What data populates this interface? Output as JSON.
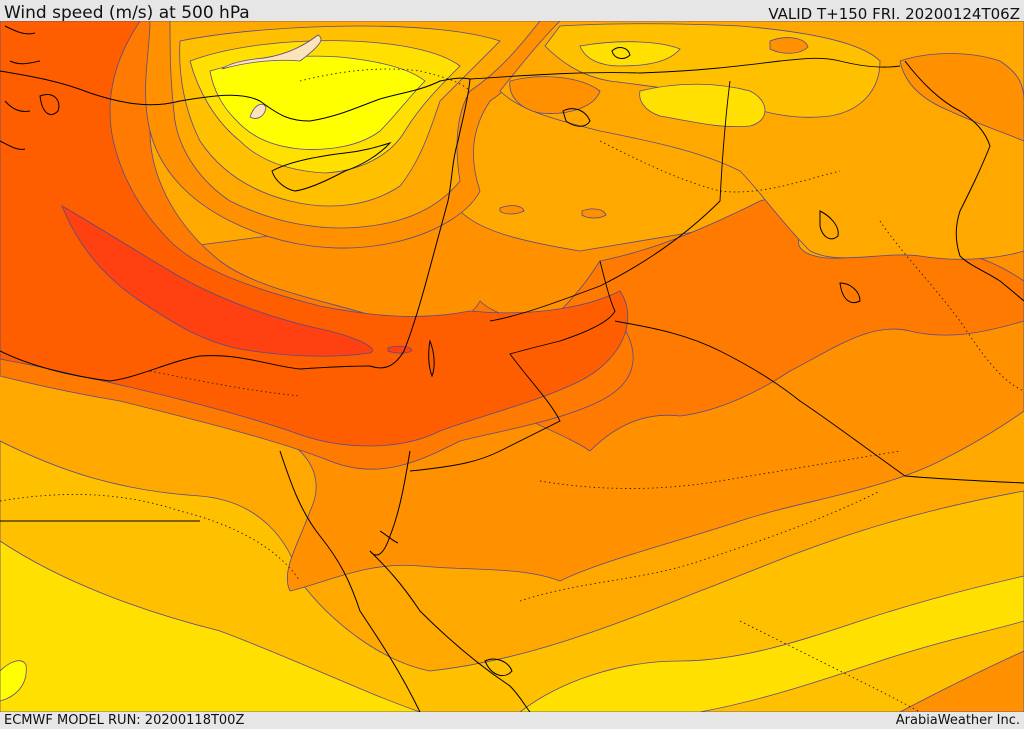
{
  "header": {
    "title": "Wind speed (m/s) at 500 hPa",
    "valid_time": "VALID T+150 FRI. 20200124T06Z"
  },
  "footer": {
    "model_run": "ECMWF MODEL RUN: 20200118T00Z",
    "credit": "ArabiaWeather Inc."
  },
  "palette": {
    "very_light": "#fbe3bb",
    "light_yellow": "#ffff00",
    "yellow": "#ffe000",
    "gold": "#ffc000",
    "amber": "#ffa800",
    "orange": "#ff9000",
    "dark_orange": "#ff7a00",
    "red_orange": "#ff5e00",
    "red": "#ff4010",
    "contour": "#5a4a8a",
    "coast": "#000000"
  }
}
